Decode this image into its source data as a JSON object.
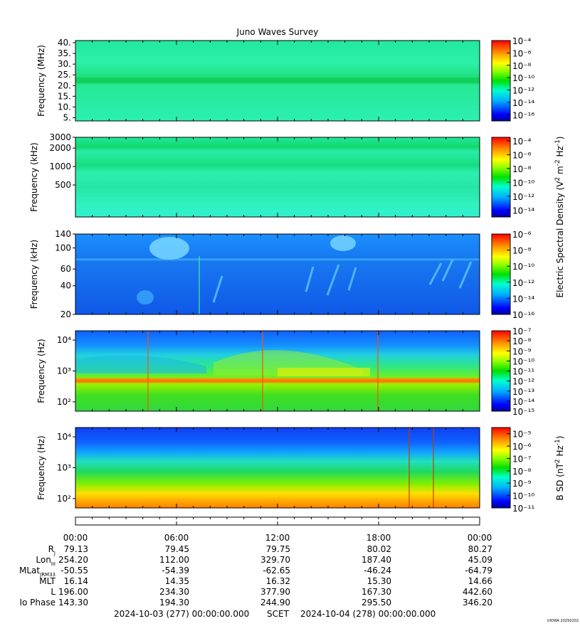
{
  "title": "Juno Waves Survey",
  "chart_data": [
    {
      "type": "heatmap",
      "panel": 1,
      "ylabel": "Frequency (MHz)",
      "yscale": "linear",
      "ylim": [
        3.5,
        41
      ],
      "yticks": [
        "5.",
        "10.",
        "15.",
        "20.",
        "25.",
        "30.",
        "35.",
        "40."
      ],
      "ytick_values": [
        5,
        10,
        15,
        20,
        25,
        30,
        35,
        40
      ],
      "features": [
        {
          "name": "narrowband line",
          "freq": 21,
          "level": -12
        }
      ],
      "colorbar": {
        "ticks": [
          -16,
          -14,
          -12,
          -10,
          -8,
          -6,
          -4
        ],
        "range": [
          -17,
          -4
        ]
      }
    },
    {
      "type": "heatmap",
      "panel": 2,
      "ylabel": "Frequency (kHz)",
      "yscale": "log",
      "ylim": [
        150,
        3000
      ],
      "yticks": [
        "500",
        "1000",
        "2000",
        "3000"
      ],
      "ytick_values": [
        500,
        1000,
        2000,
        3000
      ],
      "colorbar": {
        "ticks": [
          -14,
          -12,
          -10,
          -8,
          -6,
          -4
        ],
        "range": [
          -15,
          -3.5
        ],
        "label": "Electric Spectral Density (V² m⁻² Hz⁻¹)"
      }
    },
    {
      "type": "heatmap",
      "panel": 3,
      "ylabel": "Frequency (kHz)",
      "yscale": "log",
      "ylim": [
        20,
        140
      ],
      "yticks": [
        "20",
        "40",
        "60",
        "100",
        "140"
      ],
      "ytick_values": [
        20,
        40,
        60,
        100,
        140
      ],
      "colorbar": {
        "ticks": [
          -16,
          -14,
          -12,
          -10,
          -8,
          -6
        ],
        "range": [
          -16,
          -6
        ]
      }
    },
    {
      "type": "heatmap",
      "panel": 4,
      "ylabel": "Frequency (Hz)",
      "yscale": "log",
      "ylim": [
        50,
        20000
      ],
      "yticks": [
        "10²",
        "10³",
        "10⁴"
      ],
      "ytick_values": [
        100,
        1000,
        10000
      ],
      "features": [
        {
          "name": "line",
          "freq": 600,
          "level": -8
        }
      ],
      "colorbar": {
        "ticks": [
          -15,
          -14,
          -13,
          -12,
          -11,
          -10,
          -9,
          -8,
          -7
        ],
        "range": [
          -15,
          -7
        ]
      }
    },
    {
      "type": "heatmap",
      "panel": 5,
      "ylabel": "Frequency (Hz)",
      "yscale": "log",
      "ylim": [
        50,
        20000
      ],
      "yticks": [
        "10²",
        "10³",
        "10⁴"
      ],
      "ytick_values": [
        100,
        1000,
        10000
      ],
      "colorbar": {
        "ticks": [
          -11,
          -10,
          -9,
          -8,
          -7,
          -6,
          -5
        ],
        "range": [
          -11,
          -4.5
        ],
        "label": "B SD (nT² Hz⁻¹)"
      }
    }
  ],
  "colorbar_labels": {
    "e": {
      "pre": "Electric Spectral Density (V",
      "s1": "2",
      "mid": " m",
      "s2": "-2",
      "mid2": " Hz",
      "s3": "-1",
      "post": ")"
    },
    "b": {
      "pre": "B SD (nT",
      "s1": "2",
      "mid": " Hz",
      "s2": "-1",
      "post": ")"
    }
  },
  "xaxis": {
    "ticks": [
      "00:00",
      "06:00",
      "12:00",
      "18:00",
      "00:00"
    ],
    "hours": [
      0,
      6,
      12,
      18,
      24
    ]
  },
  "ephemeris": [
    {
      "label": "R",
      "sub": "J",
      "values": [
        "79.13",
        "79.45",
        "79.75",
        "80.02",
        "80.27"
      ]
    },
    {
      "label": "Lon",
      "sub": "III",
      "values": [
        "254.20",
        "112.00",
        "329.70",
        "187.40",
        "45.09"
      ]
    },
    {
      "label": "MLat",
      "sub": "JRM33",
      "values": [
        "-50.55",
        "-54.39",
        "-62.65",
        "-46.24",
        "-64.79"
      ]
    },
    {
      "label": "MLT",
      "sub": "",
      "values": [
        "16.14",
        "14.35",
        "16.32",
        "15.30",
        "14.66"
      ]
    },
    {
      "label": "L",
      "sub": "",
      "values": [
        "196.00",
        "234.30",
        "377.90",
        "167.30",
        "442.60"
      ]
    },
    {
      "label": "Io Phase",
      "sub": "",
      "values": [
        "143.30",
        "194.30",
        "244.90",
        "295.50",
        "346.20"
      ]
    }
  ],
  "footer": {
    "start": "2024-10-03 (277) 00:00:00.000",
    "scet": "SCET",
    "end": "2024-10-04 (278) 00:00:00.000",
    "credit": "UIOWA 20250202"
  }
}
